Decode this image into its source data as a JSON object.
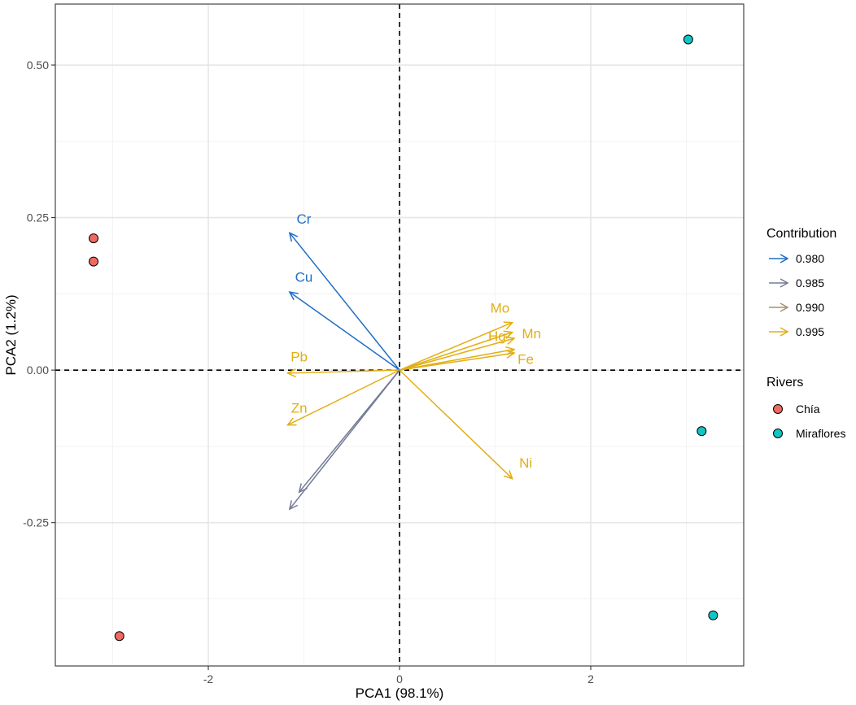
{
  "chart_data": {
    "type": "scatter",
    "title": "",
    "xlabel": "PCA1 (98.1%)",
    "ylabel": "PCA2 (1.2%)",
    "xlim": [
      -3.6,
      3.6
    ],
    "ylim": [
      -0.485,
      0.6
    ],
    "x_ticks": [
      -2,
      0,
      2
    ],
    "y_ticks": [
      0.5,
      0.25,
      0.0,
      -0.25
    ],
    "x_tick_labels": [
      "-2",
      "0",
      "2"
    ],
    "y_tick_labels": [
      "0.50",
      "0.25",
      "0.00",
      "-0.25"
    ],
    "grid": true,
    "reference_lines": {
      "x": 0,
      "y": 0,
      "style": "dashed"
    },
    "points": [
      {
        "river": "Chía",
        "x": -3.2,
        "y": 0.216
      },
      {
        "river": "Chía",
        "x": -3.2,
        "y": 0.178
      },
      {
        "river": "Chía",
        "x": -2.93,
        "y": -0.436
      },
      {
        "river": "Miraflores",
        "x": 3.02,
        "y": 0.542
      },
      {
        "river": "Miraflores",
        "x": 3.16,
        "y": -0.1
      },
      {
        "river": "Miraflores",
        "x": 3.28,
        "y": -0.402
      }
    ],
    "loadings": [
      {
        "name": "Cr",
        "x": -1.15,
        "y": 0.225,
        "contribution": 0.98,
        "label_x": -1.0,
        "label_y": 0.24
      },
      {
        "name": "Cu",
        "x": -1.15,
        "y": 0.128,
        "contribution": 0.98,
        "label_x": -1.0,
        "label_y": 0.145
      },
      {
        "name": "Pb",
        "x": -1.17,
        "y": -0.005,
        "contribution": 0.995,
        "label_x": -1.05,
        "label_y": 0.014
      },
      {
        "name": "Zn",
        "x": -1.17,
        "y": -0.09,
        "contribution": 0.995,
        "label_x": -1.05,
        "label_y": -0.07
      },
      {
        "name": "unlabeled-a",
        "x": -1.15,
        "y": -0.228,
        "contribution": 0.985
      },
      {
        "name": "unlabeled-b",
        "x": -1.05,
        "y": -0.2,
        "contribution": 0.985
      },
      {
        "name": "Mo",
        "x": 1.18,
        "y": 0.078,
        "contribution": 0.995,
        "label_x": 1.05,
        "label_y": 0.094
      },
      {
        "name": "Hg",
        "x": 1.18,
        "y": 0.062,
        "contribution": 0.995,
        "label_x": 1.02,
        "label_y": 0.048
      },
      {
        "name": "Mn",
        "x": 1.2,
        "y": 0.052,
        "contribution": 0.995,
        "label_x": 1.38,
        "label_y": 0.052
      },
      {
        "name": "Fe",
        "x": 1.2,
        "y": 0.034,
        "contribution": 0.995,
        "label_x": 1.32,
        "label_y": 0.01
      },
      {
        "name": "unlabeled-c",
        "x": 1.2,
        "y": 0.028,
        "contribution": 0.995
      },
      {
        "name": "Ni",
        "x": 1.18,
        "y": -0.178,
        "contribution": 0.995,
        "label_x": 1.32,
        "label_y": -0.16
      }
    ],
    "legend_contribution": {
      "title": "Contribution",
      "entries": [
        {
          "label": "0.980",
          "color": "#1f6fc5"
        },
        {
          "label": "0.985",
          "color": "#737b95"
        },
        {
          "label": "0.990",
          "color": "#a69070"
        },
        {
          "label": "0.995",
          "color": "#e2ae14"
        }
      ]
    },
    "legend_rivers": {
      "title": "Rivers",
      "entries": [
        {
          "label": "Chía",
          "color": "#f0695f"
        },
        {
          "label": "Miraflores",
          "color": "#12c4c4"
        }
      ]
    }
  }
}
